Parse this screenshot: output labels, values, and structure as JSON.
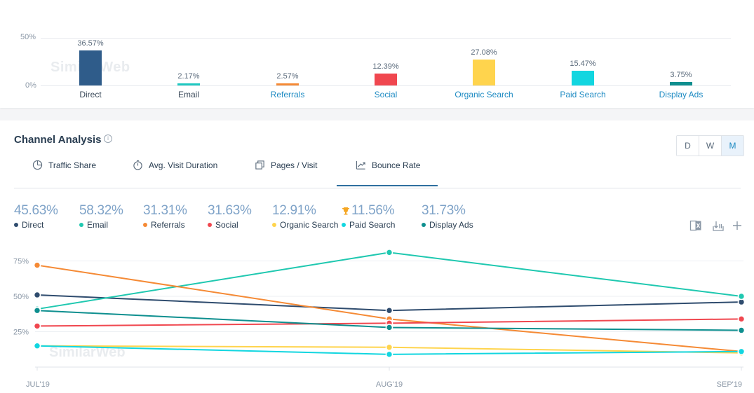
{
  "summary_chart": {
    "y_ticks": [
      "50%",
      "0%"
    ],
    "watermark": "SimilarWeb",
    "bars": [
      {
        "category": "Direct",
        "value_label": "36.57%",
        "value": 36.57,
        "color": "#2f5c8a",
        "is_link": false
      },
      {
        "category": "Email",
        "value_label": "2.17%",
        "value": 2.17,
        "color": "#1fc8c0",
        "is_link": false
      },
      {
        "category": "Referrals",
        "value_label": "2.57%",
        "value": 2.57,
        "color": "#f58a35",
        "is_link": true
      },
      {
        "category": "Social",
        "value_label": "12.39%",
        "value": 12.39,
        "color": "#f0474f",
        "is_link": true
      },
      {
        "category": "Organic Search",
        "value_label": "27.08%",
        "value": 27.08,
        "color": "#ffd44d",
        "is_link": true
      },
      {
        "category": "Paid Search",
        "value_label": "15.47%",
        "value": 15.47,
        "color": "#12d6e0",
        "is_link": true
      },
      {
        "category": "Display Ads",
        "value_label": "3.75%",
        "value": 3.75,
        "color": "#0e8f8f",
        "is_link": true
      }
    ]
  },
  "channel_analysis": {
    "title": "Channel Analysis",
    "info_icon": "i",
    "periods": [
      {
        "label": "D",
        "active": false
      },
      {
        "label": "W",
        "active": false
      },
      {
        "label": "M",
        "active": true
      }
    ],
    "tabs": [
      {
        "label": "Traffic Share",
        "icon": "pie-chart-icon",
        "active": false
      },
      {
        "label": "Avg. Visit Duration",
        "icon": "stopwatch-icon",
        "active": false
      },
      {
        "label": "Pages / Visit",
        "icon": "pages-icon",
        "active": false
      },
      {
        "label": "Bounce Rate",
        "icon": "trend-icon",
        "active": true
      }
    ],
    "legend": [
      {
        "name": "Direct",
        "value": "45.63%",
        "color": "#2f4c6e"
      },
      {
        "name": "Email",
        "value": "58.32%",
        "color": "#1fc8b0"
      },
      {
        "name": "Referrals",
        "value": "31.31%",
        "color": "#f58a35"
      },
      {
        "name": "Social",
        "value": "31.63%",
        "color": "#f0474f"
      },
      {
        "name": "Organic Search",
        "value": "12.91%",
        "color": "#ffd44d"
      },
      {
        "name": "Paid Search",
        "value": "11.56%",
        "color": "#12d6e0",
        "trophy": true
      },
      {
        "name": "Display Ads",
        "value": "31.73%",
        "color": "#0e8f8f"
      }
    ],
    "tools": [
      "excel-icon",
      "download-icon",
      "add-icon"
    ]
  },
  "chart_data": {
    "type": "line",
    "categories": [
      "JUL'19",
      "AUG'19",
      "SEP'19"
    ],
    "y_ticks": [
      "75%",
      "50%",
      "25%"
    ],
    "ylim": [
      0,
      100
    ],
    "grid": true,
    "watermark": "SimilarWeb",
    "series": [
      {
        "name": "Direct",
        "color": "#2f4c6e",
        "values": [
          51,
          40,
          46
        ]
      },
      {
        "name": "Email",
        "color": "#1fc8b0",
        "values": [
          41,
          81,
          50
        ]
      },
      {
        "name": "Referrals",
        "color": "#f58a35",
        "values": [
          72,
          34,
          11
        ]
      },
      {
        "name": "Social",
        "color": "#f0474f",
        "values": [
          29,
          31,
          34
        ]
      },
      {
        "name": "Organic Search",
        "color": "#ffd44d",
        "values": [
          15,
          14,
          10
        ]
      },
      {
        "name": "Paid Search",
        "color": "#12d6e0",
        "values": [
          15,
          9,
          11
        ]
      },
      {
        "name": "Display Ads",
        "color": "#0e8f8f",
        "values": [
          40,
          28,
          26
        ]
      }
    ]
  }
}
